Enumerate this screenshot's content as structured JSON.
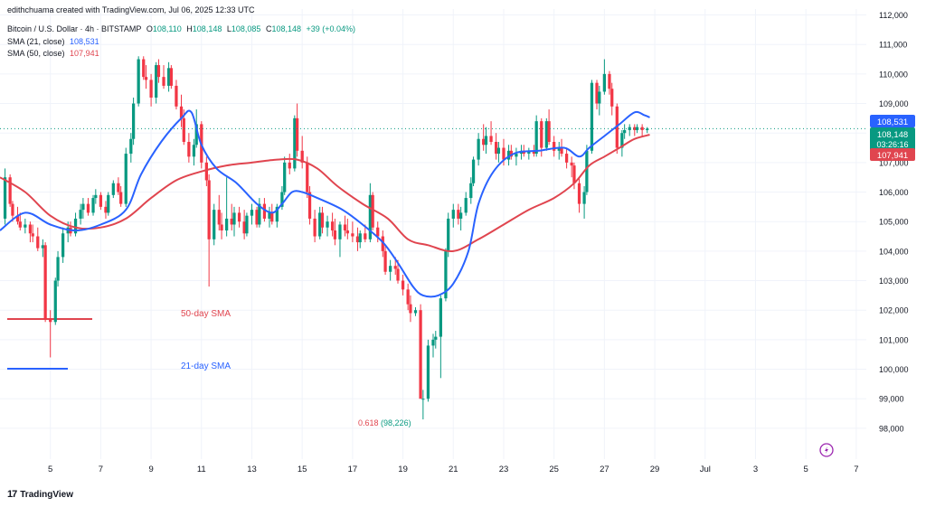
{
  "watermark": "edithchuama created with TradingView.com, Jul 06, 2025 12:33 UTC",
  "symbol": {
    "name": "Bitcoin / U.S. Dollar · 4h · BITSTAMP",
    "open_label": "O",
    "open": "108,110",
    "high_label": "H",
    "high": "108,148",
    "low_label": "L",
    "low": "108,085",
    "close_label": "C",
    "close": "108,148",
    "change": "+39 (+0.04%)"
  },
  "indicators": {
    "sma21_label": "SMA (21, close)",
    "sma21_value": "108,531",
    "sma50_label": "SMA (50, close)",
    "sma50_value": "107,941"
  },
  "price_tags": {
    "sma21": "108,531",
    "last_price": "108,148",
    "countdown": "03:26:16",
    "sma50": "107,941"
  },
  "annotations": {
    "sma50_legend": "50-day SMA",
    "sma21_legend": "21-day SMA",
    "fib_ratio": "0.618",
    "fib_value": "(98,226)"
  },
  "footer": {
    "logo": "17",
    "brand": "TradingView"
  },
  "colors": {
    "up": "#089981",
    "down": "#f23645",
    "sma21": "#2962ff",
    "sma50": "#e0454f",
    "price_tag": "#089981",
    "sma21_tag": "#2962ff",
    "sma50_tag": "#e0454f"
  },
  "chart_data": {
    "type": "candlestick",
    "title": "Bitcoin / U.S. Dollar · 4h · BITSTAMP",
    "ylim": [
      97200,
      112200
    ],
    "y_ticks": [
      "98,000",
      "99,000",
      "100,000",
      "101,000",
      "102,000",
      "103,000",
      "104,000",
      "105,000",
      "106,000",
      "107,000",
      "108,000",
      "109,000",
      "110,000",
      "111,000",
      "112,000"
    ],
    "y_tick_values": [
      98000,
      99000,
      100000,
      101000,
      102000,
      103000,
      104000,
      105000,
      106000,
      107000,
      108000,
      109000,
      110000,
      111000,
      112000
    ],
    "x_tick_labels": [
      "5",
      "7",
      "9",
      "11",
      "13",
      "15",
      "17",
      "19",
      "21",
      "23",
      "25",
      "27",
      "29",
      "Jul",
      "3",
      "5",
      "7"
    ],
    "x_range_days": [
      3.0,
      37.4
    ],
    "x_tick_days": [
      5,
      7,
      9,
      11,
      13,
      15,
      17,
      19,
      21,
      23,
      25,
      27,
      29,
      31,
      33,
      35,
      37
    ],
    "last_price": 108148,
    "sma21_last": 108531,
    "sma50_last": 107941,
    "ohlc": [
      [
        3.2,
        105100,
        106800,
        104900,
        106500
      ],
      [
        3.4,
        106500,
        106600,
        105500,
        105600
      ],
      [
        3.5,
        105600,
        105700,
        105000,
        105200
      ],
      [
        3.7,
        105200,
        105500,
        104900,
        105000
      ],
      [
        3.8,
        105000,
        105300,
        104700,
        104800
      ],
      [
        4.0,
        104800,
        105100,
        104600,
        104900
      ],
      [
        4.2,
        104900,
        105000,
        104300,
        104600
      ],
      [
        4.3,
        104600,
        104900,
        104300,
        104500
      ],
      [
        4.5,
        104500,
        104800,
        104000,
        104100
      ],
      [
        4.7,
        104100,
        104400,
        103800,
        104200
      ],
      [
        4.8,
        104200,
        104300,
        101600,
        101700
      ],
      [
        5.0,
        101700,
        102000,
        100400,
        101600
      ],
      [
        5.2,
        101600,
        103100,
        101500,
        103000
      ],
      [
        5.3,
        103000,
        104000,
        102800,
        103800
      ],
      [
        5.5,
        103800,
        104800,
        103600,
        104600
      ],
      [
        5.7,
        104600,
        105000,
        104300,
        104800
      ],
      [
        5.8,
        104800,
        105000,
        104500,
        104600
      ],
      [
        6.0,
        104600,
        105300,
        104500,
        105100
      ],
      [
        6.2,
        105100,
        105600,
        104900,
        105400
      ],
      [
        6.3,
        105400,
        105800,
        105100,
        105600
      ],
      [
        6.5,
        105600,
        105800,
        105200,
        105300
      ],
      [
        6.7,
        105300,
        105900,
        105200,
        105800
      ],
      [
        6.8,
        105800,
        106100,
        105600,
        105900
      ],
      [
        7.0,
        105900,
        106000,
        105400,
        105500
      ],
      [
        7.2,
        105500,
        105700,
        105100,
        105300
      ],
      [
        7.3,
        105300,
        106000,
        105200,
        105900
      ],
      [
        7.5,
        105900,
        106400,
        105800,
        106300
      ],
      [
        7.7,
        106300,
        106500,
        105900,
        106000
      ],
      [
        7.8,
        106000,
        106200,
        105500,
        105600
      ],
      [
        8.0,
        105600,
        107500,
        105500,
        107300
      ],
      [
        8.2,
        107300,
        108000,
        107000,
        107800
      ],
      [
        8.3,
        107800,
        109200,
        107600,
        109000
      ],
      [
        8.5,
        109000,
        110600,
        108900,
        110500
      ],
      [
        8.7,
        110500,
        110600,
        109800,
        109900
      ],
      [
        8.8,
        109900,
        110300,
        109500,
        109800
      ],
      [
        9.0,
        109800,
        110000,
        108900,
        109200
      ],
      [
        9.2,
        109200,
        110400,
        109000,
        110300
      ],
      [
        9.3,
        110300,
        110500,
        109700,
        109900
      ],
      [
        9.5,
        109900,
        110300,
        109500,
        109600
      ],
      [
        9.7,
        109600,
        110400,
        109400,
        110200
      ],
      [
        9.8,
        110200,
        110300,
        109500,
        109600
      ],
      [
        10.0,
        109600,
        109800,
        108800,
        108900
      ],
      [
        10.2,
        108900,
        109300,
        108200,
        108500
      ],
      [
        10.3,
        108500,
        108800,
        107600,
        107700
      ],
      [
        10.5,
        107700,
        108000,
        107000,
        107200
      ],
      [
        10.7,
        107200,
        107800,
        106900,
        107600
      ],
      [
        10.8,
        107600,
        108800,
        107500,
        108300
      ],
      [
        11.0,
        108300,
        108400,
        106800,
        107000
      ],
      [
        11.2,
        107000,
        107200,
        106200,
        106400
      ],
      [
        11.3,
        106400,
        106600,
        102800,
        104400
      ],
      [
        11.5,
        104400,
        105600,
        104200,
        105400
      ],
      [
        11.7,
        105400,
        105900,
        104700,
        104900
      ],
      [
        11.8,
        104900,
        105300,
        104400,
        104700
      ],
      [
        12.0,
        104700,
        106500,
        104500,
        105100
      ],
      [
        12.2,
        105100,
        105600,
        104700,
        104900
      ],
      [
        12.3,
        104900,
        105500,
        104500,
        105300
      ],
      [
        12.5,
        105300,
        105500,
        104800,
        105000
      ],
      [
        12.7,
        105000,
        105400,
        104400,
        104600
      ],
      [
        12.8,
        104600,
        105300,
        104500,
        105200
      ],
      [
        13.0,
        105200,
        105600,
        104900,
        105400
      ],
      [
        13.2,
        105400,
        105500,
        104800,
        104900
      ],
      [
        13.3,
        104900,
        105800,
        104800,
        105600
      ],
      [
        13.5,
        105600,
        105800,
        105000,
        105100
      ],
      [
        13.7,
        105100,
        105500,
        104800,
        105300
      ],
      [
        13.8,
        105300,
        105600,
        104900,
        105000
      ],
      [
        14.0,
        105000,
        105600,
        104800,
        105500
      ],
      [
        14.2,
        105500,
        106200,
        105400,
        106000
      ],
      [
        14.3,
        106000,
        107200,
        105900,
        107000
      ],
      [
        14.5,
        107000,
        107300,
        106600,
        106800
      ],
      [
        14.7,
        106800,
        108600,
        106700,
        108500
      ],
      [
        14.8,
        108500,
        109000,
        107200,
        107400
      ],
      [
        15.0,
        107400,
        107900,
        106800,
        107000
      ],
      [
        15.2,
        107000,
        107200,
        105800,
        106000
      ],
      [
        15.3,
        106000,
        106200,
        104900,
        105100
      ],
      [
        15.5,
        105100,
        105400,
        104300,
        104500
      ],
      [
        15.7,
        104500,
        105500,
        104400,
        105300
      ],
      [
        15.8,
        105300,
        105500,
        104600,
        104800
      ],
      [
        16.0,
        104800,
        105200,
        104500,
        105000
      ],
      [
        16.2,
        105000,
        105300,
        104500,
        104700
      ],
      [
        16.3,
        104700,
        105100,
        104200,
        104400
      ],
      [
        16.5,
        104400,
        105000,
        103800,
        104900
      ],
      [
        16.7,
        104900,
        105200,
        104500,
        104700
      ],
      [
        16.8,
        104700,
        105100,
        104400,
        104600
      ],
      [
        17.0,
        104600,
        105000,
        104300,
        104500
      ],
      [
        17.2,
        104500,
        104800,
        104000,
        104300
      ],
      [
        17.3,
        104300,
        104700,
        104100,
        104600
      ],
      [
        17.5,
        104600,
        104900,
        104300,
        104400
      ],
      [
        17.7,
        104400,
        106300,
        104300,
        105900
      ],
      [
        17.8,
        105900,
        106000,
        104700,
        104800
      ],
      [
        18.0,
        104800,
        105000,
        104300,
        104500
      ],
      [
        18.2,
        104500,
        104700,
        103800,
        104000
      ],
      [
        18.3,
        104000,
        104200,
        103200,
        103300
      ],
      [
        18.5,
        103300,
        103700,
        103000,
        103500
      ],
      [
        18.7,
        103500,
        103800,
        103200,
        103400
      ],
      [
        18.8,
        103400,
        103700,
        102900,
        103000
      ],
      [
        19.0,
        103000,
        103200,
        102500,
        102700
      ],
      [
        19.2,
        102700,
        102900,
        102000,
        102200
      ],
      [
        19.3,
        102200,
        102500,
        101600,
        101900
      ],
      [
        19.5,
        101900,
        102100,
        101800,
        102000
      ],
      [
        19.7,
        102000,
        102200,
        99000,
        99000
      ],
      [
        19.8,
        99000,
        99300,
        98300,
        99000
      ],
      [
        20.0,
        99000,
        101000,
        98900,
        100800
      ],
      [
        20.2,
        100800,
        101200,
        100400,
        101000
      ],
      [
        20.3,
        101000,
        101300,
        100700,
        101100
      ],
      [
        20.5,
        101100,
        102500,
        99700,
        102400
      ],
      [
        20.7,
        102400,
        104100,
        102300,
        104000
      ],
      [
        20.8,
        104000,
        105300,
        103800,
        105100
      ],
      [
        21.0,
        105100,
        105600,
        104800,
        105400
      ],
      [
        21.2,
        105400,
        105600,
        104900,
        105100
      ],
      [
        21.3,
        105100,
        105500,
        104700,
        105300
      ],
      [
        21.5,
        105300,
        106000,
        105200,
        105800
      ],
      [
        21.7,
        105800,
        106500,
        105600,
        106300
      ],
      [
        21.8,
        106300,
        107200,
        106200,
        107100
      ],
      [
        22.0,
        107100,
        108000,
        106900,
        107800
      ],
      [
        22.2,
        107800,
        108300,
        107400,
        107600
      ],
      [
        22.3,
        107600,
        108200,
        107300,
        107900
      ],
      [
        22.5,
        107900,
        108400,
        107600,
        107700
      ],
      [
        22.7,
        107700,
        108000,
        107100,
        107300
      ],
      [
        22.8,
        107300,
        107700,
        107000,
        107500
      ],
      [
        23.0,
        107500,
        107800,
        106900,
        107100
      ],
      [
        23.2,
        107100,
        107600,
        106900,
        107400
      ],
      [
        23.3,
        107400,
        107600,
        107100,
        107200
      ],
      [
        23.5,
        107200,
        107500,
        106900,
        107300
      ],
      [
        23.7,
        107300,
        107600,
        107100,
        107400
      ],
      [
        23.8,
        107400,
        107600,
        107200,
        107300
      ],
      [
        24.0,
        107300,
        107500,
        107100,
        107400
      ],
      [
        24.2,
        107400,
        107600,
        107200,
        107300
      ],
      [
        24.3,
        107300,
        108600,
        107200,
        108400
      ],
      [
        24.5,
        108400,
        108500,
        107200,
        107500
      ],
      [
        24.7,
        107500,
        108500,
        107400,
        108400
      ],
      [
        24.8,
        108400,
        108800,
        107600,
        107700
      ],
      [
        25.0,
        107700,
        107900,
        107200,
        107400
      ],
      [
        25.2,
        107400,
        107700,
        107100,
        107500
      ],
      [
        25.3,
        107500,
        107800,
        107200,
        107300
      ],
      [
        25.5,
        107300,
        107500,
        106800,
        107000
      ],
      [
        25.7,
        107000,
        107200,
        106500,
        106900
      ],
      [
        25.8,
        106900,
        107000,
        106100,
        106300
      ],
      [
        26.0,
        106300,
        106500,
        105300,
        105600
      ],
      [
        26.2,
        105600,
        106200,
        105100,
        106000
      ],
      [
        26.3,
        106000,
        107600,
        105900,
        107400
      ],
      [
        26.5,
        107400,
        109800,
        107300,
        109700
      ],
      [
        26.7,
        109700,
        109800,
        108800,
        109000
      ],
      [
        26.8,
        109000,
        109600,
        108600,
        109400
      ],
      [
        27.0,
        109400,
        110500,
        109300,
        110000
      ],
      [
        27.2,
        110000,
        110100,
        109300,
        109500
      ],
      [
        27.3,
        109500,
        109700,
        108600,
        108900
      ],
      [
        27.5,
        108900,
        109000,
        107300,
        107500
      ],
      [
        27.7,
        107500,
        108100,
        107200,
        108000
      ],
      [
        27.8,
        108000,
        108300,
        107800,
        108100
      ],
      [
        28.0,
        108100,
        108300,
        107900,
        108200
      ],
      [
        28.2,
        108200,
        108300,
        107900,
        108100
      ],
      [
        28.3,
        108100,
        108300,
        108000,
        108200
      ],
      [
        28.5,
        108200,
        108300,
        107900,
        108100
      ],
      [
        28.7,
        108100,
        108200,
        108000,
        108148
      ]
    ],
    "sma21": [
      [
        3.0,
        104700
      ],
      [
        4.0,
        105300
      ],
      [
        5.0,
        104900
      ],
      [
        6.0,
        104700
      ],
      [
        7.0,
        104900
      ],
      [
        8.0,
        105400
      ],
      [
        8.6,
        106600
      ],
      [
        9.4,
        107700
      ],
      [
        10.2,
        108500
      ],
      [
        10.6,
        108700
      ],
      [
        11.0,
        107600
      ],
      [
        11.6,
        106800
      ],
      [
        12.4,
        106300
      ],
      [
        13.2,
        105600
      ],
      [
        13.8,
        105300
      ],
      [
        14.2,
        105600
      ],
      [
        14.6,
        106000
      ],
      [
        15.0,
        106000
      ],
      [
        15.6,
        105800
      ],
      [
        16.6,
        105400
      ],
      [
        17.4,
        104900
      ],
      [
        18.2,
        104300
      ],
      [
        18.8,
        103600
      ],
      [
        19.4,
        102800
      ],
      [
        19.8,
        102500
      ],
      [
        20.4,
        102500
      ],
      [
        21.0,
        102900
      ],
      [
        21.6,
        104000
      ],
      [
        22.0,
        105600
      ],
      [
        22.6,
        106700
      ],
      [
        23.4,
        107300
      ],
      [
        24.4,
        107400
      ],
      [
        25.4,
        107500
      ],
      [
        26.0,
        107200
      ],
      [
        26.4,
        107500
      ],
      [
        27.0,
        107900
      ],
      [
        27.6,
        108300
      ],
      [
        28.2,
        108700
      ],
      [
        28.6,
        108600
      ],
      [
        28.8,
        108531
      ]
    ],
    "sma50": [
      [
        3.0,
        106500
      ],
      [
        4.0,
        106000
      ],
      [
        5.0,
        105200
      ],
      [
        6.0,
        104800
      ],
      [
        7.0,
        104800
      ],
      [
        8.0,
        105100
      ],
      [
        9.0,
        105800
      ],
      [
        10.0,
        106400
      ],
      [
        11.0,
        106700
      ],
      [
        12.0,
        106900
      ],
      [
        13.0,
        107000
      ],
      [
        14.0,
        107100
      ],
      [
        14.8,
        107100
      ],
      [
        15.6,
        106800
      ],
      [
        16.4,
        106200
      ],
      [
        17.4,
        105600
      ],
      [
        18.4,
        105100
      ],
      [
        19.2,
        104400
      ],
      [
        20.0,
        104200
      ],
      [
        21.0,
        104000
      ],
      [
        22.0,
        104400
      ],
      [
        23.0,
        104900
      ],
      [
        24.0,
        105400
      ],
      [
        25.0,
        105800
      ],
      [
        25.8,
        106300
      ],
      [
        26.4,
        106900
      ],
      [
        27.0,
        107200
      ],
      [
        27.6,
        107500
      ],
      [
        28.2,
        107800
      ],
      [
        28.8,
        107941
      ]
    ]
  }
}
